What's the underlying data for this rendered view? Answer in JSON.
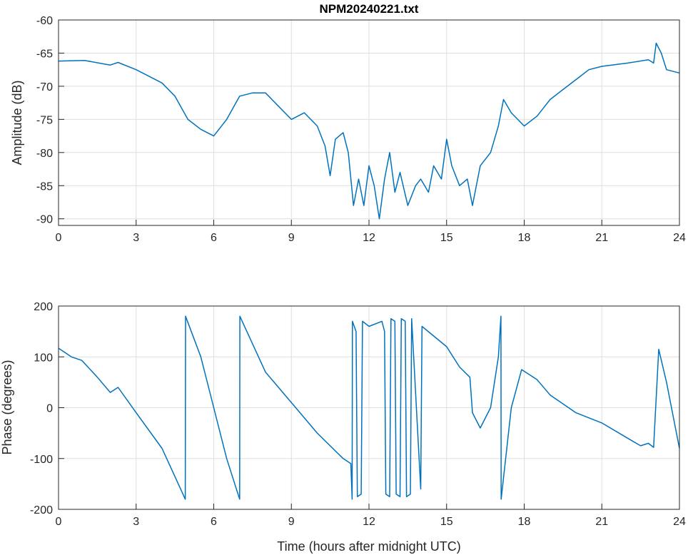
{
  "chart_data": [
    {
      "type": "line",
      "title": "NPM20240221.txt",
      "xlabel": "",
      "ylabel": "Amplitude (dB)",
      "xlim": [
        0,
        24
      ],
      "ylim": [
        -91,
        -60
      ],
      "xticks": [
        0,
        3,
        6,
        9,
        12,
        15,
        18,
        21,
        24
      ],
      "yticks": [
        -60,
        -65,
        -70,
        -75,
        -80,
        -85,
        -90
      ],
      "grid": true,
      "color": "#0072BD",
      "x": [
        0,
        1,
        2,
        2.3,
        3,
        4,
        4.5,
        5,
        5.5,
        6,
        6.5,
        7,
        7.5,
        8,
        8.5,
        9,
        9.5,
        10,
        10.3,
        10.5,
        10.7,
        11,
        11.2,
        11.4,
        11.6,
        11.8,
        12,
        12.2,
        12.4,
        12.6,
        12.8,
        13,
        13.2,
        13.5,
        13.8,
        14,
        14.3,
        14.5,
        14.8,
        15,
        15.2,
        15.5,
        15.8,
        16,
        16.3,
        16.7,
        17,
        17.2,
        17.5,
        18,
        18.5,
        19,
        19.5,
        20,
        20.5,
        21,
        22,
        22.8,
        23,
        23.1,
        23.3,
        23.5,
        24
      ],
      "y": [
        -66.2,
        -66.1,
        -66.8,
        -66.4,
        -67.5,
        -69.5,
        -71.5,
        -75,
        -76.5,
        -77.5,
        -75,
        -71.5,
        -71,
        -71,
        -73,
        -75,
        -74,
        -76,
        -79,
        -83.5,
        -78,
        -77,
        -80,
        -88,
        -84,
        -88,
        -82,
        -85,
        -90,
        -84,
        -80,
        -86,
        -83,
        -88,
        -85,
        -84,
        -86,
        -82,
        -84,
        -78,
        -82,
        -85,
        -84,
        -88,
        -82,
        -80,
        -76,
        -72,
        -74,
        -76,
        -74.5,
        -72,
        -70.5,
        -69,
        -67.5,
        -67,
        -66.5,
        -66,
        -66.5,
        -63.5,
        -65,
        -67.5,
        -68
      ]
    },
    {
      "type": "line",
      "title": "",
      "xlabel": "Time (hours after midnight UTC)",
      "ylabel": "Phase (degrees)",
      "xlim": [
        0,
        24
      ],
      "ylim": [
        -200,
        200
      ],
      "xticks": [
        0,
        3,
        6,
        9,
        12,
        15,
        18,
        21,
        24
      ],
      "yticks": [
        200,
        100,
        0,
        -100,
        -200
      ],
      "grid": true,
      "color": "#0072BD",
      "x": [
        0,
        0.5,
        0.9,
        1.5,
        2,
        2.3,
        3,
        4,
        4.9,
        4.91,
        5.5,
        6,
        6.5,
        7,
        7.01,
        8,
        9,
        10,
        11,
        11.3,
        11.35,
        11.36,
        11.5,
        11.55,
        11.7,
        11.75,
        12,
        12.5,
        12.6,
        12.65,
        12.8,
        12.85,
        13,
        13.05,
        13.2,
        13.25,
        13.4,
        13.45,
        13.6,
        13.65,
        14,
        14.05,
        15,
        15.5,
        15.9,
        16,
        16.3,
        16.7,
        17,
        17.1,
        17.11,
        17.5,
        17.9,
        18.5,
        19,
        20,
        21,
        22,
        22.5,
        22.8,
        23,
        23.2,
        23.5,
        24
      ],
      "y": [
        117,
        100,
        93,
        60,
        30,
        40,
        -10,
        -80,
        -180,
        180,
        100,
        0,
        -100,
        -180,
        180,
        70,
        10,
        -50,
        -100,
        -110,
        -180,
        170,
        150,
        -175,
        -170,
        170,
        160,
        170,
        150,
        -170,
        -175,
        175,
        170,
        -170,
        -175,
        175,
        170,
        -175,
        -170,
        175,
        -160,
        160,
        120,
        80,
        60,
        -10,
        -40,
        0,
        100,
        180,
        -180,
        0,
        75,
        55,
        25,
        -10,
        -30,
        -60,
        -75,
        -70,
        -78,
        115,
        50,
        -80
      ]
    }
  ]
}
